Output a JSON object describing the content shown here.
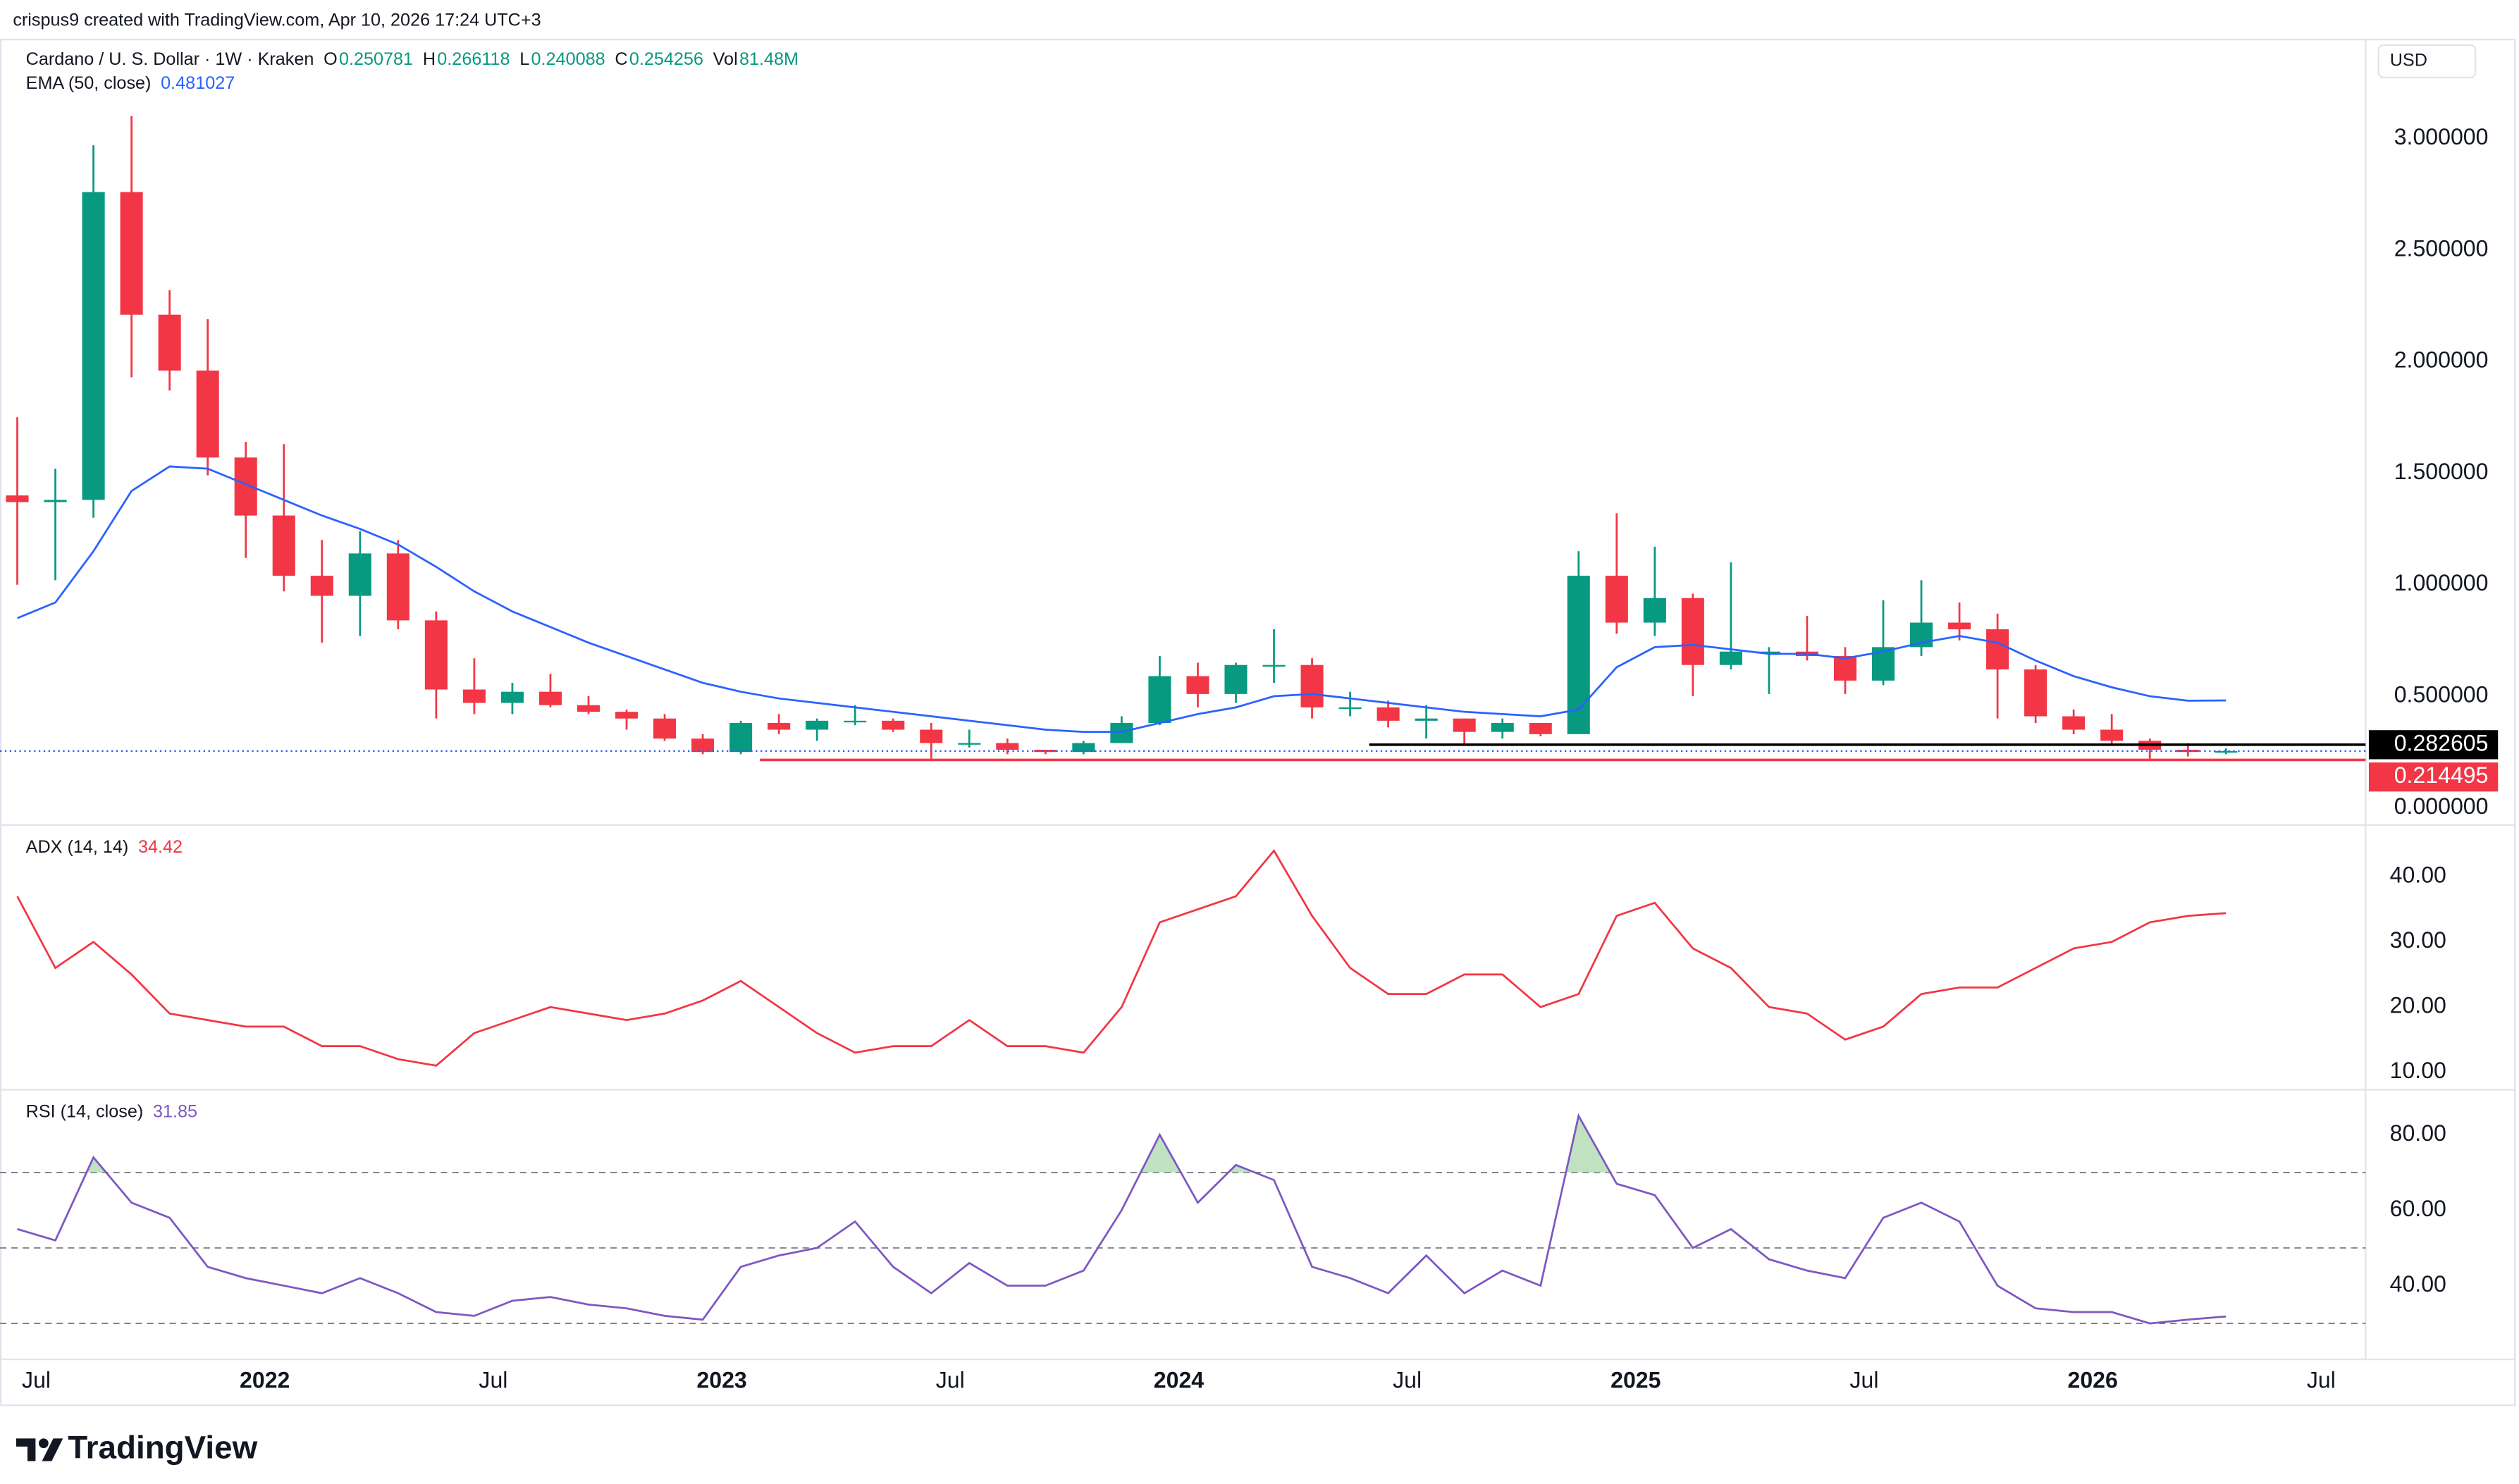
{
  "header": "crispus9 created with TradingView.com, Apr 10, 2026 17:24 UTC+3",
  "footer": "TradingView",
  "chart_data": {
    "type": "candlestick",
    "title": "Cardano / U. S. Dollar · 1W · Kraken",
    "currency": "USD",
    "ohlc_labels": [
      "O",
      "H",
      "L",
      "C"
    ],
    "volume_label": "Vol",
    "volume": "81.48M",
    "up_color": "#089981",
    "down_color": "#f23645",
    "x": [
      "2021-06",
      "2021-07",
      "2021-08",
      "2021-09",
      "2021-10",
      "2021-11",
      "2021-12",
      "2022-01",
      "2022-02",
      "2022-03",
      "2022-04",
      "2022-05",
      "2022-06",
      "2022-07",
      "2022-08",
      "2022-09",
      "2022-10",
      "2022-11",
      "2022-12",
      "2023-01",
      "2023-02",
      "2023-03",
      "2023-04",
      "2023-05",
      "2023-06",
      "2023-07",
      "2023-08",
      "2023-09",
      "2023-10",
      "2023-11",
      "2023-12",
      "2024-01",
      "2024-02",
      "2024-03",
      "2024-04",
      "2024-05",
      "2024-06",
      "2024-07",
      "2024-08",
      "2024-09",
      "2024-10",
      "2024-11",
      "2024-12",
      "2025-01",
      "2025-02",
      "2025-03",
      "2025-04",
      "2025-05",
      "2025-06",
      "2025-07",
      "2025-08",
      "2025-09",
      "2025-10",
      "2025-11",
      "2025-12",
      "2026-01",
      "2026-02",
      "2026-03",
      "2026-04"
    ],
    "open": [
      1.4,
      1.37,
      1.38,
      2.76,
      2.21,
      1.96,
      1.57,
      1.31,
      1.04,
      0.95,
      1.14,
      0.84,
      0.53,
      0.47,
      0.52,
      0.46,
      0.43,
      0.4,
      0.31,
      0.25,
      0.38,
      0.35,
      0.39,
      0.39,
      0.35,
      0.29,
      0.29,
      0.26,
      0.25,
      0.29,
      0.38,
      0.59,
      0.51,
      0.64,
      0.64,
      0.45,
      0.45,
      0.39,
      0.4,
      0.34,
      0.38,
      0.33,
      1.04,
      0.83,
      0.94,
      0.64,
      0.7,
      0.7,
      0.68,
      0.57,
      0.72,
      0.83,
      0.8,
      0.62,
      0.41,
      0.35,
      0.3,
      0.26,
      0.250781
    ],
    "high": [
      1.75,
      1.52,
      2.97,
      3.1,
      2.32,
      2.19,
      1.64,
      1.63,
      1.2,
      1.24,
      1.2,
      0.88,
      0.67,
      0.56,
      0.6,
      0.5,
      0.44,
      0.42,
      0.33,
      0.39,
      0.42,
      0.4,
      0.46,
      0.4,
      0.38,
      0.35,
      0.31,
      0.26,
      0.3,
      0.41,
      0.68,
      0.65,
      0.65,
      0.8,
      0.67,
      0.52,
      0.48,
      0.46,
      0.4,
      0.4,
      0.38,
      1.15,
      1.32,
      1.17,
      0.96,
      1.1,
      0.72,
      0.86,
      0.72,
      0.93,
      1.02,
      0.92,
      0.87,
      0.64,
      0.44,
      0.42,
      0.31,
      0.29,
      0.266118
    ],
    "low": [
      1.0,
      1.02,
      1.3,
      1.93,
      1.87,
      1.49,
      1.12,
      0.97,
      0.74,
      0.77,
      0.8,
      0.4,
      0.42,
      0.42,
      0.45,
      0.42,
      0.35,
      0.3,
      0.24,
      0.24,
      0.33,
      0.3,
      0.37,
      0.34,
      0.22,
      0.27,
      0.24,
      0.24,
      0.24,
      0.29,
      0.37,
      0.45,
      0.47,
      0.56,
      0.4,
      0.41,
      0.36,
      0.31,
      0.28,
      0.31,
      0.32,
      0.33,
      0.78,
      0.77,
      0.5,
      0.62,
      0.51,
      0.66,
      0.51,
      0.55,
      0.68,
      0.75,
      0.4,
      0.38,
      0.33,
      0.28,
      0.22,
      0.23,
      0.240088
    ],
    "close": [
      1.37,
      1.38,
      2.76,
      2.21,
      1.96,
      1.57,
      1.31,
      1.04,
      0.95,
      1.14,
      0.84,
      0.53,
      0.47,
      0.52,
      0.46,
      0.43,
      0.4,
      0.31,
      0.25,
      0.38,
      0.35,
      0.39,
      0.39,
      0.35,
      0.29,
      0.29,
      0.26,
      0.25,
      0.29,
      0.38,
      0.59,
      0.51,
      0.64,
      0.64,
      0.45,
      0.45,
      0.39,
      0.4,
      0.34,
      0.38,
      0.33,
      1.04,
      0.83,
      0.94,
      0.64,
      0.7,
      0.7,
      0.68,
      0.57,
      0.72,
      0.83,
      0.8,
      0.62,
      0.41,
      0.35,
      0.3,
      0.26,
      0.25,
      0.254256
    ],
    "series": [
      {
        "name": "EMA (50, close)",
        "color": "#2962ff",
        "values": [
          0.85,
          0.92,
          1.15,
          1.42,
          1.53,
          1.52,
          1.45,
          1.38,
          1.31,
          1.25,
          1.18,
          1.08,
          0.97,
          0.88,
          0.81,
          0.74,
          0.68,
          0.62,
          0.56,
          0.52,
          0.49,
          0.47,
          0.45,
          0.43,
          0.41,
          0.39,
          0.37,
          0.35,
          0.34,
          0.34,
          0.38,
          0.42,
          0.45,
          0.5,
          0.51,
          0.49,
          0.47,
          0.45,
          0.43,
          0.42,
          0.41,
          0.44,
          0.63,
          0.72,
          0.73,
          0.71,
          0.69,
          0.69,
          0.67,
          0.7,
          0.74,
          0.77,
          0.74,
          0.66,
          0.59,
          0.54,
          0.5,
          0.48,
          0.481027
        ]
      }
    ],
    "ylim": [
      -0.07,
      3.44
    ],
    "yticks": [
      {
        "value": 0,
        "label": "0.000000"
      },
      {
        "value": 0.5,
        "label": "0.500000"
      },
      {
        "value": 1,
        "label": "1.000000"
      },
      {
        "value": 1.5,
        "label": "1.500000"
      },
      {
        "value": 2,
        "label": "2.000000"
      },
      {
        "value": 2.5,
        "label": "2.500000"
      },
      {
        "value": 3,
        "label": "3.000000"
      }
    ],
    "grid": false,
    "levels": [
      {
        "value": 0.282605,
        "color": "#000000",
        "from": "2024-06"
      },
      {
        "value": 0.214495,
        "color": "#f23645",
        "from": "2023-02"
      }
    ],
    "xticks": [
      {
        "value": "2021-07",
        "label": "Jul"
      },
      {
        "value": "2022-01",
        "label": "2022"
      },
      {
        "value": "2022-07",
        "label": "Jul"
      },
      {
        "value": "2023-01",
        "label": "2023"
      },
      {
        "value": "2023-07",
        "label": "Jul"
      },
      {
        "value": "2024-01",
        "label": "2024"
      },
      {
        "value": "2024-07",
        "label": "Jul"
      },
      {
        "value": "2025-01",
        "label": "2025"
      },
      {
        "value": "2025-07",
        "label": "Jul"
      },
      {
        "value": "2026-01",
        "label": "2026"
      },
      {
        "value": "2026-07",
        "label": "Jul"
      }
    ],
    "panes": [
      {
        "type": "line",
        "series": [
          {
            "name": "ADX (14, 14)",
            "color": "#f23645",
            "values": [
              37,
              26,
              30,
              25,
              19,
              18,
              17,
              17,
              14,
              14,
              12,
              11,
              16,
              18,
              20,
              19,
              18,
              19,
              21,
              24,
              20,
              16,
              13,
              14,
              14,
              18,
              14,
              14,
              13,
              20,
              33,
              35,
              37,
              44,
              34,
              26,
              22,
              22,
              25,
              25,
              20,
              22,
              34,
              36,
              29,
              26,
              20,
              19,
              15,
              17,
              22,
              23,
              23,
              26,
              29,
              30,
              33,
              34,
              34.42
            ]
          }
        ],
        "ylim": [
          7.8,
          47.7
        ],
        "yticks": [
          {
            "value": 10,
            "label": "10.00"
          },
          {
            "value": 20,
            "label": "20.00"
          },
          {
            "value": 30,
            "label": "30.00"
          },
          {
            "value": 40,
            "label": "40.00"
          }
        ]
      },
      {
        "type": "line",
        "series": [
          {
            "name": "RSI (14, close)",
            "color": "#7e57c2",
            "values": [
              55,
              52,
              74,
              62,
              58,
              45,
              42,
              40,
              38,
              42,
              38,
              33,
              32,
              36,
              37,
              35,
              34,
              32,
              31,
              45,
              48,
              50,
              57,
              45,
              38,
              46,
              40,
              40,
              44,
              60,
              80,
              62,
              72,
              68,
              45,
              42,
              38,
              48,
              38,
              44,
              40,
              85,
              67,
              64,
              50,
              55,
              47,
              44,
              42,
              58,
              62,
              57,
              40,
              34,
              33,
              33,
              30,
              31,
              31.85
            ]
          }
        ],
        "ylim": [
          20.9,
          91.5
        ],
        "yticks": [
          {
            "value": 40,
            "label": "40.00"
          },
          {
            "value": 60,
            "label": "60.00"
          },
          {
            "value": 80,
            "label": "80.00"
          }
        ],
        "bands": [
          30,
          50,
          70
        ],
        "overbought": 70,
        "overbought_fill": "#a5d6a7"
      }
    ]
  }
}
